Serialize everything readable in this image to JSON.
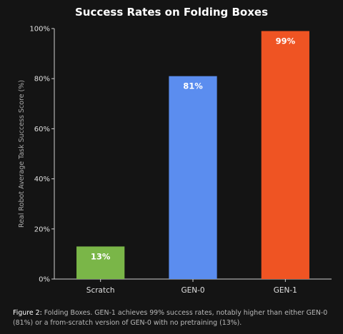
{
  "chart_data": {
    "type": "bar",
    "title": "Success Rates on Folding Boxes",
    "ylabel": "Real Robot Average Task Success Score (%)",
    "xlabel": "",
    "categories": [
      "Scratch",
      "GEN-0",
      "GEN-1"
    ],
    "values": [
      13,
      81,
      99
    ],
    "value_labels": [
      "13%",
      "81%",
      "99%"
    ],
    "colors": [
      "#7ab648",
      "#5b8def",
      "#ef5423"
    ],
    "ylim": [
      0,
      100
    ],
    "yticks": [
      0,
      20,
      40,
      60,
      80,
      100
    ],
    "ytick_labels": [
      "0%",
      "20%",
      "40%",
      "60%",
      "80%",
      "100%"
    ],
    "grid": false,
    "legend": "none"
  },
  "caption": {
    "prefix": "Figure 2:",
    "text": " Folding Boxes. GEN-1 achieves 99% success rates, notably higher than either GEN-0 (81%) or a from-scratch version of GEN-0 with no pretraining (13%)."
  }
}
